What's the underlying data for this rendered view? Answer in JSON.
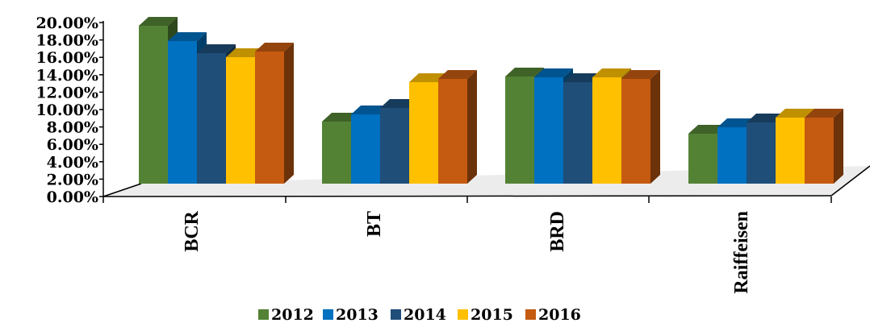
{
  "chart_data": {
    "type": "bar",
    "categories": [
      "BCR",
      "BT",
      "BRD",
      "Raiffeisen"
    ],
    "series": [
      {
        "name": "2012",
        "values": [
          19.6,
          7.7,
          13.3,
          6.2
        ],
        "color": "#548235"
      },
      {
        "name": "2013",
        "values": [
          17.7,
          8.6,
          13.2,
          7.0
        ],
        "color": "#0070C0"
      },
      {
        "name": "2014",
        "values": [
          16.2,
          9.4,
          12.6,
          7.6
        ],
        "color": "#1F4E79"
      },
      {
        "name": "2015",
        "values": [
          15.7,
          12.6,
          13.2,
          8.2
        ],
        "color": "#FFC000"
      },
      {
        "name": "2016",
        "values": [
          16.4,
          13.0,
          13.0,
          8.2
        ],
        "color": "#C55A11"
      }
    ],
    "yticks": [
      "0.00%",
      "2.00%",
      "4.00%",
      "6.00%",
      "8.00%",
      "10.00%",
      "12.00%",
      "14.00%",
      "16.00%",
      "18.00%",
      "20.00%"
    ],
    "ylim": [
      0,
      20
    ],
    "legend_position": "bottom",
    "grid": false
  }
}
